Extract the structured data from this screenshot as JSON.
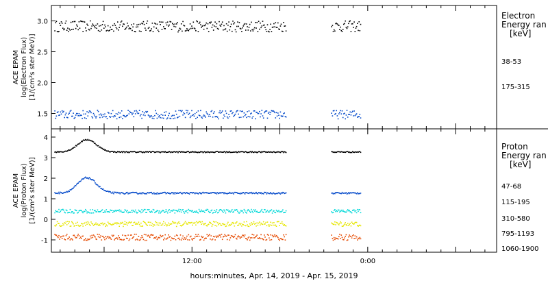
{
  "xlabel": "hours:minutes, Apr. 14, 2019 - Apr. 15, 2019",
  "x_ticks": [
    {
      "hour": 12,
      "label": "12:00"
    },
    {
      "hour": 24,
      "label": "0:00"
    }
  ],
  "chart_data": [
    {
      "type": "scatter",
      "panel": "electron",
      "ylabel_lines": [
        "ACE EPAM",
        "log(Electron Flux)",
        "[1/(cm²s ster MeV)]"
      ],
      "side_title_lines": [
        "Electron",
        "Energy ran",
        "[keV]"
      ],
      "x_range_hours": [
        2.4,
        32.8
      ],
      "ylim": [
        1.25,
        3.25
      ],
      "y_ticks": [
        1.5,
        2.0,
        2.5,
        3.0
      ],
      "y_tick_labels": [
        "1.5",
        "2.0",
        "2.5",
        "3.0"
      ],
      "grid": false,
      "series": [
        {
          "name": "38-53",
          "color": "#000000",
          "level": 2.92,
          "noise": 0.09,
          "segments": [
            [
              2.6,
              18.4
            ],
            [
              21.5,
              23.5
            ]
          ]
        },
        {
          "name": "175-315",
          "color": "#0047c9",
          "level": 1.49,
          "noise": 0.07,
          "segments": [
            [
              2.6,
              18.4
            ],
            [
              21.5,
              23.5
            ]
          ]
        }
      ]
    },
    {
      "type": "scatter",
      "panel": "proton",
      "ylabel_lines": [
        "ACE EPAM",
        "log(Proton Flux)",
        "[1/(cm²s ster MeV)]"
      ],
      "side_title_lines": [
        "Proton",
        "Energy ran",
        "[keV]"
      ],
      "x_range_hours": [
        2.4,
        32.8
      ],
      "ylim": [
        -1.6,
        4.4
      ],
      "y_ticks": [
        -1,
        0,
        1,
        2,
        3,
        4
      ],
      "y_tick_labels": [
        "-1",
        "0",
        "1",
        "2",
        "3",
        "4"
      ],
      "grid": false,
      "series": [
        {
          "name": "47-68",
          "color": "#000000",
          "level": 3.3,
          "noise": 0.03,
          "bump": 0.6,
          "segments": [
            [
              2.6,
              18.4
            ],
            [
              21.5,
              23.5
            ]
          ]
        },
        {
          "name": "115-195",
          "color": "#0047c9",
          "level": 1.3,
          "noise": 0.04,
          "bump": 0.75,
          "segments": [
            [
              2.6,
              18.4
            ],
            [
              21.5,
              23.5
            ]
          ]
        },
        {
          "name": "310-580",
          "color": "#00d8d8",
          "level": 0.42,
          "noise": 0.09,
          "segments": [
            [
              2.6,
              18.4
            ],
            [
              21.5,
              23.5
            ]
          ]
        },
        {
          "name": "795-1193",
          "color": "#e6e600",
          "level": -0.2,
          "noise": 0.12,
          "segments": [
            [
              2.6,
              18.4
            ],
            [
              21.5,
              23.5
            ]
          ]
        },
        {
          "name": "1060-1900",
          "color": "#e64a00",
          "level": -0.85,
          "noise": 0.15,
          "segments": [
            [
              2.6,
              18.4
            ],
            [
              21.5,
              23.5
            ]
          ]
        }
      ]
    }
  ]
}
